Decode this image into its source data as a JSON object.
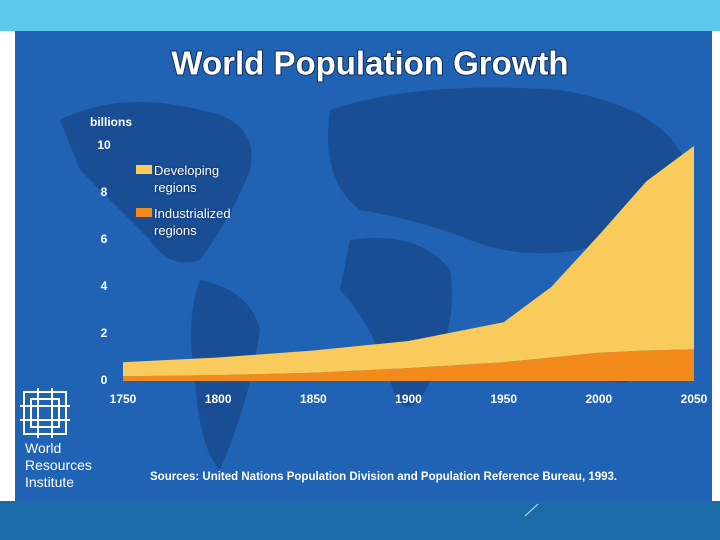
{
  "chart_data": {
    "type": "stacked_area",
    "title": "World Population Growth",
    "ylabel": "billions",
    "x": [
      1750,
      1800,
      1850,
      1900,
      1950,
      1975,
      2000,
      2025,
      2050
    ],
    "xlim": [
      1750,
      2050
    ],
    "xticks": [
      1750,
      1800,
      1850,
      1900,
      1950,
      2000,
      2050
    ],
    "ylim": [
      0,
      10
    ],
    "yticks": [
      0,
      2,
      4,
      6,
      8,
      10
    ],
    "series": [
      {
        "name": "Industrialized regions",
        "color": "#f28a1c",
        "values": [
          0.2,
          0.25,
          0.35,
          0.55,
          0.8,
          1.0,
          1.2,
          1.3,
          1.35
        ]
      },
      {
        "name": "Developing regions",
        "color": "#f9cb5c",
        "values": [
          0.6,
          0.75,
          0.95,
          1.15,
          1.7,
          3.0,
          5.0,
          7.2,
          8.65
        ]
      }
    ],
    "source": "Sources: United Nations Population Division and Population Reference Bureau, 1993.",
    "logo_text": "World Resources Institute"
  }
}
